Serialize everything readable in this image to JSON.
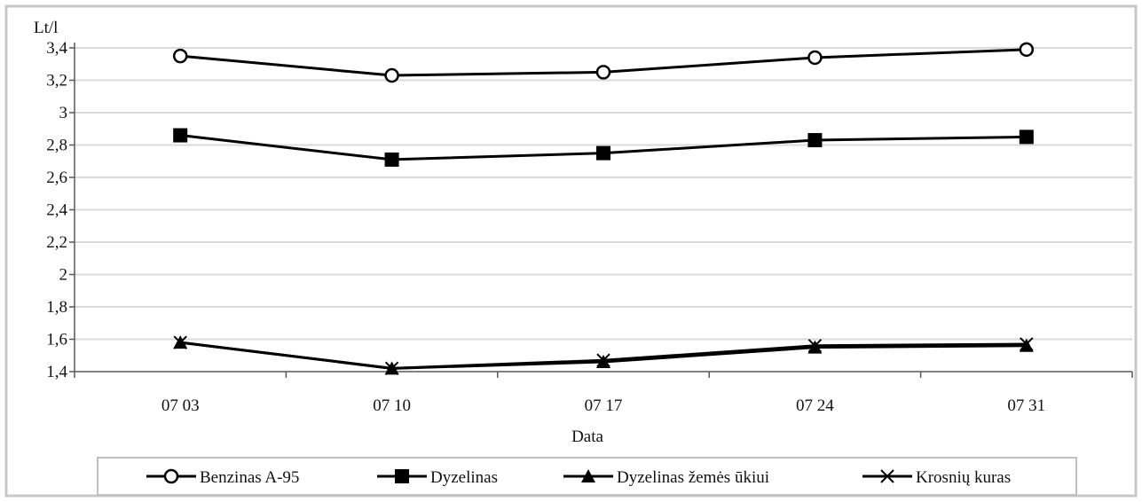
{
  "chart_data": {
    "type": "line",
    "title": "",
    "xlabel": "Data",
    "ylabel": "Lt/l",
    "categories": [
      "07 03",
      "07 10",
      "07 17",
      "07 24",
      "07 31"
    ],
    "ylim": [
      1.4,
      3.4
    ],
    "yticks": [
      "1,4",
      "1,6",
      "1,8",
      "2",
      "2,2",
      "2,4",
      "2,6",
      "2,8",
      "3",
      "3,2",
      "3,4"
    ],
    "grid": true,
    "legend_position": "bottom",
    "series": [
      {
        "name": "Benzinas A-95",
        "marker": "open-circle",
        "values": [
          3.35,
          3.23,
          3.25,
          3.34,
          3.39
        ]
      },
      {
        "name": "Dyzelinas",
        "marker": "filled-square",
        "values": [
          2.86,
          2.71,
          2.75,
          2.83,
          2.85
        ]
      },
      {
        "name": "Dyzelinas žemės ūkiui",
        "marker": "filled-triangle",
        "values": [
          1.58,
          1.42,
          1.46,
          1.55,
          1.56
        ]
      },
      {
        "name": "Krosnių kuras",
        "marker": "x-cross",
        "values": [
          1.58,
          1.42,
          1.47,
          1.56,
          1.57
        ]
      }
    ],
    "colors": {
      "line": "#000000",
      "grid": "#d9d9d9",
      "frame": "#c8c8c8"
    }
  }
}
